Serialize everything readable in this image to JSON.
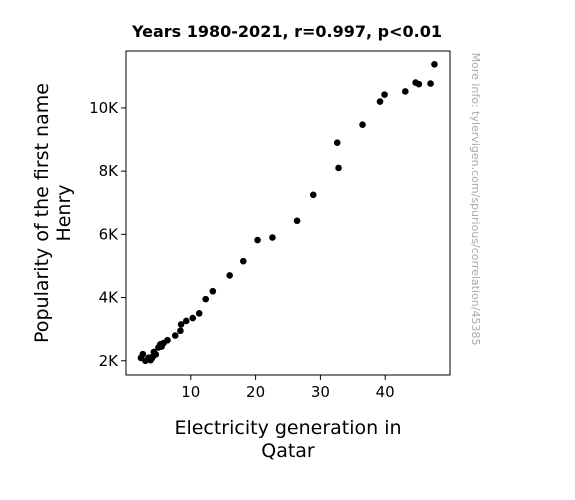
{
  "chart_data": {
    "type": "scatter",
    "title": "Years 1980-2021, r=0.997, p<0.01",
    "xlabel_lines": [
      "Electricity generation in",
      "Qatar"
    ],
    "ylabel_lines": [
      "Popularity of the first name",
      "Henry"
    ],
    "xlim": [
      0,
      50
    ],
    "ylim": [
      1550,
      11800
    ],
    "x_ticks": [
      {
        "value": 10,
        "label": "10"
      },
      {
        "value": 20,
        "label": "20"
      },
      {
        "value": 30,
        "label": "30"
      },
      {
        "value": 40,
        "label": "40"
      }
    ],
    "y_ticks": [
      {
        "value": 2000,
        "label": "2K"
      },
      {
        "value": 4000,
        "label": "4K"
      },
      {
        "value": 6000,
        "label": "6K"
      },
      {
        "value": 8000,
        "label": "8K"
      },
      {
        "value": 10000,
        "label": "10K"
      }
    ],
    "marker_color": "#000000",
    "points": [
      {
        "x": 2.3,
        "y": 2090
      },
      {
        "x": 2.6,
        "y": 2210
      },
      {
        "x": 3.0,
        "y": 2000
      },
      {
        "x": 3.5,
        "y": 2100
      },
      {
        "x": 3.8,
        "y": 2020
      },
      {
        "x": 4.0,
        "y": 2080
      },
      {
        "x": 4.2,
        "y": 2150
      },
      {
        "x": 4.3,
        "y": 2280
      },
      {
        "x": 4.6,
        "y": 2200
      },
      {
        "x": 5.0,
        "y": 2420
      },
      {
        "x": 5.3,
        "y": 2520
      },
      {
        "x": 5.5,
        "y": 2450
      },
      {
        "x": 5.8,
        "y": 2560
      },
      {
        "x": 6.4,
        "y": 2650
      },
      {
        "x": 7.6,
        "y": 2800
      },
      {
        "x": 8.4,
        "y": 2950
      },
      {
        "x": 8.5,
        "y": 3150
      },
      {
        "x": 9.3,
        "y": 3260
      },
      {
        "x": 10.3,
        "y": 3350
      },
      {
        "x": 11.3,
        "y": 3500
      },
      {
        "x": 12.3,
        "y": 3950
      },
      {
        "x": 13.4,
        "y": 4200
      },
      {
        "x": 16.0,
        "y": 4700
      },
      {
        "x": 18.1,
        "y": 5150
      },
      {
        "x": 20.3,
        "y": 5820
      },
      {
        "x": 22.6,
        "y": 5900
      },
      {
        "x": 26.4,
        "y": 6430
      },
      {
        "x": 28.9,
        "y": 7250
      },
      {
        "x": 32.6,
        "y": 8900
      },
      {
        "x": 32.8,
        "y": 8100
      },
      {
        "x": 36.5,
        "y": 9470
      },
      {
        "x": 39.2,
        "y": 10200
      },
      {
        "x": 39.9,
        "y": 10420
      },
      {
        "x": 43.1,
        "y": 10520
      },
      {
        "x": 44.7,
        "y": 10800
      },
      {
        "x": 45.2,
        "y": 10750
      },
      {
        "x": 47.0,
        "y": 10770
      },
      {
        "x": 47.6,
        "y": 11380
      }
    ]
  },
  "watermark": "More info: tylervigen.com/spurious/correlation/45385"
}
